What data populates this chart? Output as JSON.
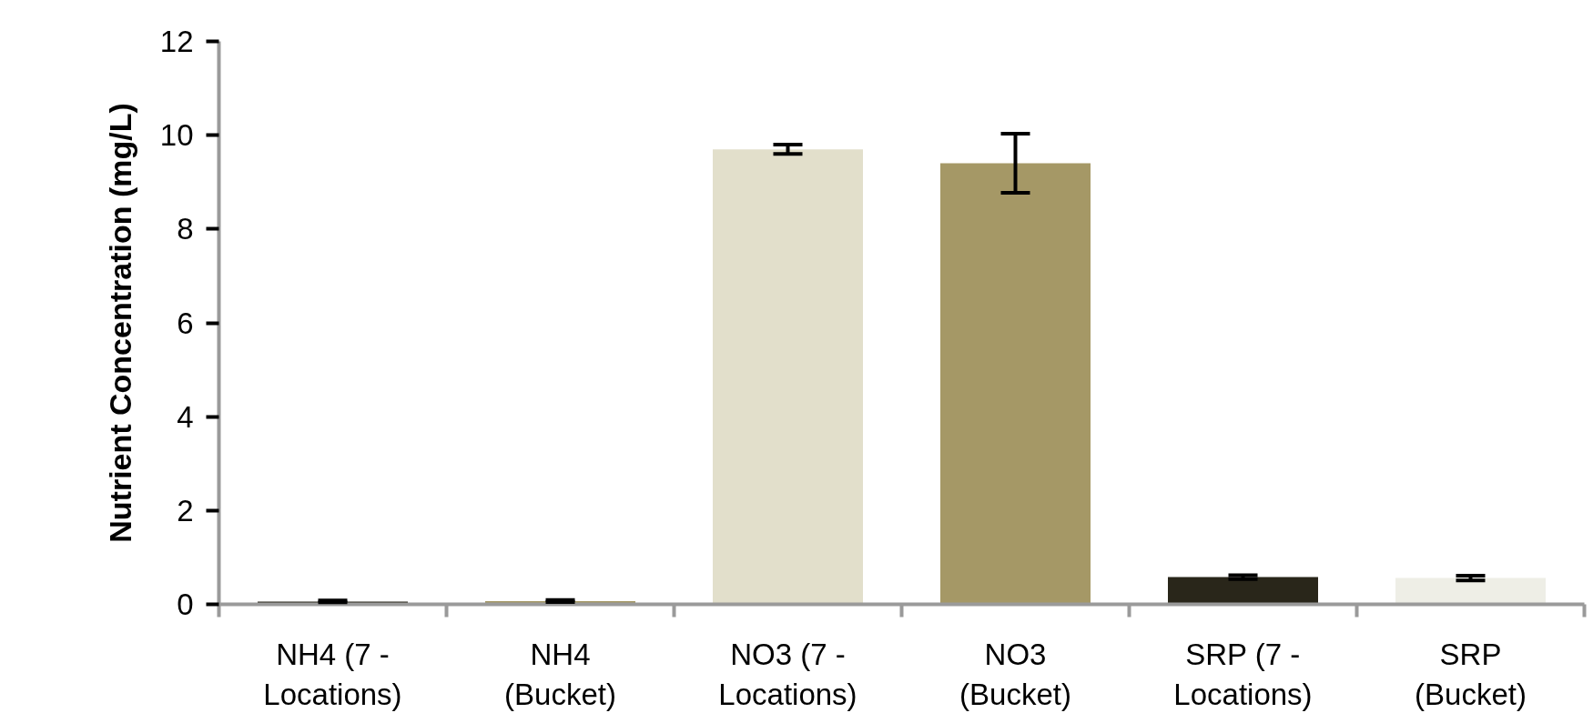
{
  "chart_data": {
    "type": "bar",
    "ylabel": "Nutrient Concentration (mg/L)",
    "categories": [
      "NH4 (7 - Locations)",
      "NH4 (Bucket)",
      "NO3 (7 - Locations)",
      "NO3 (Bucket)",
      "SRP (7 - Locations)",
      "SRP (Bucket)"
    ],
    "values": [
      0.06,
      0.07,
      9.7,
      9.4,
      0.58,
      0.56
    ],
    "errors": [
      0.02,
      0.02,
      0.1,
      0.63,
      0.04,
      0.05
    ],
    "colors": [
      "#29261a",
      "#a59866",
      "#e2dfcb",
      "#a59866",
      "#29261a",
      "#eeeee6"
    ],
    "ylim": [
      0,
      12
    ],
    "yticks": [
      0,
      2,
      4,
      6,
      8,
      10,
      12
    ],
    "grid": false
  }
}
